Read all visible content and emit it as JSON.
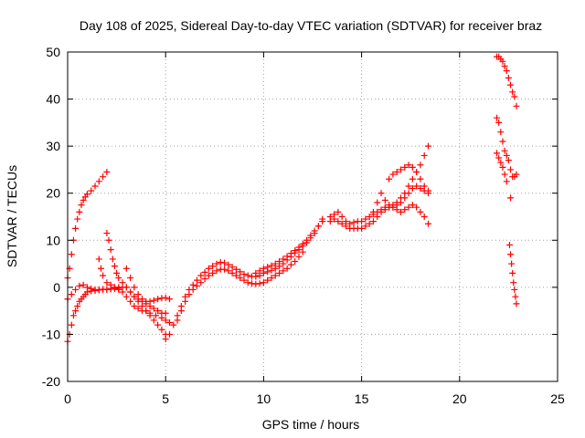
{
  "chart_data": {
    "type": "scatter",
    "title": "Day 108 of 2025, Sidereal Day-to-day VTEC variation (SDTVAR) for receiver braz",
    "xlabel": "GPS time / hours",
    "ylabel": "SDTVAR / TECUs",
    "xlim": [
      0,
      25
    ],
    "ylim": [
      -20,
      50
    ],
    "x_ticks": [
      "0",
      "5",
      "10",
      "15",
      "20",
      "25"
    ],
    "y_ticks": [
      "-20",
      "-10",
      "0",
      "10",
      "20",
      "30",
      "40",
      "50"
    ],
    "grid": true,
    "marker": "plus",
    "color": "#ff0000",
    "series": [
      {
        "x": [
          0.0,
          0.1,
          0.2,
          0.3,
          0.4,
          0.5,
          0.6,
          0.7,
          0.8,
          0.9,
          1.0,
          1.2,
          1.4,
          1.6,
          1.8,
          2.0
        ],
        "y": [
          2,
          4,
          7,
          10,
          12.5,
          14.5,
          16,
          17.5,
          18.5,
          19.2,
          19.8,
          20.5,
          21.5,
          22.5,
          23.5,
          24.5
        ]
      },
      {
        "x": [
          0.0,
          0.1,
          0.2,
          0.3,
          0.4,
          0.5,
          0.6,
          0.7,
          0.8,
          0.9,
          1.0,
          1.2,
          1.4,
          1.6,
          1.8,
          2.0,
          2.2,
          2.4,
          2.6,
          2.8
        ],
        "y": [
          -11.5,
          -10,
          -8,
          -6,
          -5,
          -4,
          -3,
          -2.5,
          -2,
          -1.5,
          -1,
          -0.8,
          -0.7,
          -0.6,
          -0.5,
          -0.5,
          -0.4,
          -0.3,
          -0.2,
          0
        ]
      },
      {
        "x": [
          0.0,
          0.2,
          0.4,
          0.6,
          0.8,
          1.0,
          1.2,
          1.4,
          1.6,
          1.8,
          2.0,
          2.2,
          2.4,
          2.6
        ],
        "y": [
          -2.5,
          -1.5,
          -0.5,
          0.3,
          0.5,
          0,
          -0.3,
          -0.5,
          -0.5,
          -0.4,
          -0.5,
          -0.3,
          0,
          0
        ]
      },
      {
        "x": [
          2.0,
          2.1,
          2.2,
          2.3,
          2.4,
          2.5,
          2.6,
          2.8,
          3.0,
          3.2,
          3.4,
          3.6,
          3.8,
          4.0,
          4.2,
          4.4,
          4.6,
          4.8,
          5.0
        ],
        "y": [
          11.5,
          10,
          8,
          6,
          4.5,
          3,
          2,
          1,
          0,
          -1,
          -2,
          -3,
          -4,
          -5,
          -6,
          -7,
          -8,
          -9,
          -10
        ]
      },
      {
        "x": [
          1.6,
          1.7,
          1.8,
          2.0,
          2.2,
          2.4,
          2.6,
          2.8,
          3.0,
          3.2,
          3.4,
          3.6,
          3.8,
          4.0,
          4.2,
          4.5,
          4.8,
          5.0,
          5.2
        ],
        "y": [
          6,
          4,
          2.5,
          1,
          0.5,
          0,
          -0.5,
          -1,
          -2,
          -3,
          -4,
          -4.5,
          -5,
          -5,
          -5.5,
          -6,
          -6.5,
          -7,
          -7.5
        ]
      },
      {
        "x": [
          3.0,
          3.2,
          3.4,
          3.6,
          3.8,
          4.0,
          4.2,
          4.4,
          4.6,
          4.8,
          5.0,
          5.2
        ],
        "y": [
          4,
          2,
          0,
          -1.5,
          -2.5,
          -3,
          -3,
          -2.8,
          -2.5,
          -2.3,
          -2.2,
          -2.5
        ]
      },
      {
        "x": [
          3.0,
          3.2,
          3.4,
          3.6,
          3.8,
          4.0,
          4.2,
          4.4,
          4.6,
          4.8,
          5.0
        ],
        "y": [
          0,
          -1,
          -2,
          -2.5,
          -3,
          -3.5,
          -4,
          -4.5,
          -5,
          -5.5,
          -5.5
        ]
      },
      {
        "x": [
          5.0,
          5.2,
          5.4,
          5.6,
          5.8,
          6.0,
          6.2,
          6.4,
          6.6,
          6.8,
          7.0,
          7.2,
          7.4,
          7.6,
          7.8,
          8.0,
          8.2,
          8.4,
          8.6,
          8.8,
          9.0,
          9.2,
          9.4,
          9.6,
          9.8,
          10.0,
          10.2,
          10.4,
          10.6,
          10.8,
          11.0,
          11.2,
          11.4,
          11.6,
          11.8,
          12.0,
          12.2,
          12.4,
          12.6,
          12.8,
          13.0
        ],
        "y": [
          -11,
          -10,
          -8,
          -6,
          -4,
          -2,
          -0.5,
          0.5,
          1.5,
          2.5,
          3.2,
          4,
          4.5,
          5,
          5.3,
          5.2,
          4.8,
          4.3,
          3.8,
          3.3,
          2.8,
          2.5,
          2.3,
          2.3,
          2.5,
          3,
          3.3,
          3.6,
          4,
          4.5,
          5,
          5.8,
          6.5,
          7.3,
          8,
          8.8,
          9.5,
          10.5,
          11.5,
          13,
          14.5
        ]
      },
      {
        "x": [
          5.6,
          5.8,
          6.0,
          6.2,
          6.4,
          6.6,
          6.8,
          7.0,
          7.2,
          7.4,
          7.6,
          7.8,
          8.0,
          8.2,
          8.4,
          8.6,
          8.8,
          9.0,
          9.2,
          9.4,
          9.6,
          9.8,
          10.0,
          10.2,
          10.4,
          10.6,
          10.8,
          11.0,
          11.2,
          11.4,
          11.6,
          11.8,
          12.0
        ],
        "y": [
          -7,
          -5,
          -3,
          -1.5,
          -0.5,
          0.3,
          1,
          1.8,
          2.5,
          3,
          3.5,
          3.8,
          3.8,
          3.5,
          3,
          2.5,
          2,
          1.5,
          1,
          0.8,
          0.7,
          0.8,
          1,
          1.5,
          2,
          2.5,
          3,
          3.5,
          4,
          4.8,
          5.5,
          6.5,
          7.5
        ]
      },
      {
        "x": [
          9.6,
          9.8,
          10.0,
          10.2,
          10.4,
          10.6,
          10.8,
          11.0,
          11.2,
          11.4,
          11.6,
          11.8,
          12.0,
          12.2,
          12.4,
          12.6,
          12.8,
          13.0
        ],
        "y": [
          3,
          3.5,
          4,
          4.3,
          4.6,
          5,
          5.5,
          6,
          6.6,
          7.2,
          7.8,
          8.5,
          9.2,
          10,
          11,
          12,
          13,
          14
        ]
      },
      {
        "x": [
          13.4,
          13.6,
          13.8,
          14.0,
          14.2,
          14.4,
          14.6,
          14.8,
          15.0,
          15.2,
          15.4,
          15.6,
          15.8,
          16.0,
          16.2,
          16.4,
          16.6,
          16.8,
          17.0,
          17.2,
          17.4,
          17.6,
          17.8,
          18.0,
          18.2,
          18.4
        ],
        "y": [
          15,
          15.5,
          16,
          15,
          14,
          13.5,
          13.8,
          14,
          14,
          14.5,
          15,
          15.5,
          16,
          16.5,
          17,
          17,
          17.5,
          18,
          19,
          20,
          21.5,
          23,
          24.5,
          26,
          28,
          30
        ]
      },
      {
        "x": [
          13.4,
          13.6,
          13.8,
          14.0,
          14.2,
          14.4,
          14.6,
          14.8,
          15.0,
          15.2,
          15.4,
          15.6,
          15.8,
          16.0,
          16.2,
          16.4,
          16.6,
          16.8,
          17.0,
          17.2,
          17.4,
          17.6,
          17.8,
          18.0,
          18.2,
          18.4
        ],
        "y": [
          14,
          14.5,
          14,
          13.5,
          13,
          12.5,
          12.5,
          12.5,
          12.5,
          13,
          13.5,
          14,
          15,
          16,
          16.5,
          17,
          17,
          16.5,
          16,
          16.5,
          17,
          17.5,
          17,
          16,
          15,
          13.5
        ]
      },
      {
        "x": [
          15.6,
          15.8,
          16.0,
          16.2,
          16.4,
          16.6,
          16.8,
          17.0,
          17.2,
          17.4,
          17.6,
          17.8,
          18.0,
          18.2,
          18.4
        ],
        "y": [
          16,
          18,
          20,
          18.5,
          17.5,
          17,
          17.5,
          18,
          19,
          20,
          21,
          21.5,
          21,
          20.5,
          20
        ]
      },
      {
        "x": [
          16.4,
          16.6,
          16.8,
          17.0,
          17.2,
          17.4,
          17.6,
          17.8,
          18.0,
          18.2,
          18.4
        ],
        "y": [
          23,
          24,
          24.5,
          25,
          25.5,
          26,
          25.5,
          24.5,
          23,
          21.5,
          20.5
        ]
      },
      {
        "x": [
          21.9,
          22.0,
          22.1,
          22.2,
          22.3,
          22.4,
          22.5,
          22.6,
          22.7,
          22.8,
          22.9
        ],
        "y": [
          49,
          49,
          48.5,
          48,
          47,
          46,
          44.5,
          43,
          41.5,
          40.5,
          38.5
        ]
      },
      {
        "x": [
          21.9,
          22.0,
          22.1,
          22.2,
          22.3,
          22.4,
          22.5,
          22.6,
          22.7,
          22.8,
          22.9
        ],
        "y": [
          36,
          35,
          33,
          31,
          29,
          28,
          27,
          25,
          23.5,
          23.5,
          24
        ]
      },
      {
        "x": [
          21.9,
          22.0,
          22.1,
          22.2,
          22.3,
          22.4
        ],
        "y": [
          28.5,
          27.5,
          26.5,
          25.5,
          24,
          22.5
        ]
      },
      {
        "x": [
          22.6
        ],
        "y": [
          19
        ]
      },
      {
        "x": [
          22.55,
          22.6,
          22.65,
          22.7,
          22.75,
          22.8,
          22.85,
          22.9
        ],
        "y": [
          9,
          7,
          5,
          3,
          1,
          -0.5,
          -2,
          -3.5
        ]
      }
    ]
  }
}
